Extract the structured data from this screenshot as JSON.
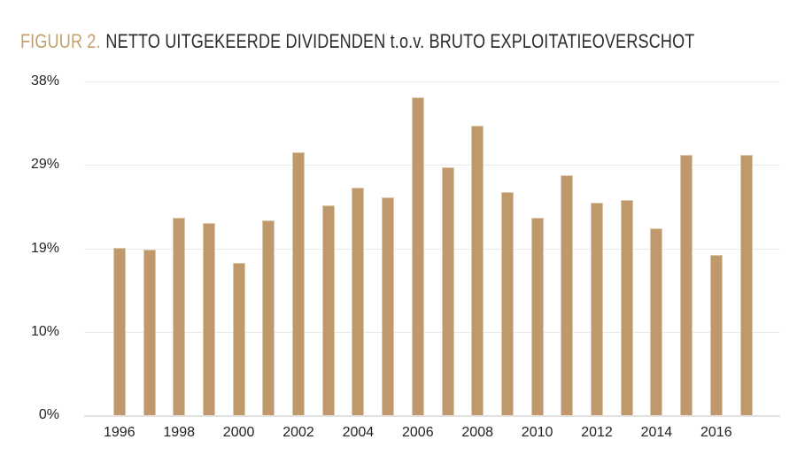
{
  "figure": {
    "label": "FIGUUR 2.",
    "title": "NETTO UITGEKEERDE DIVIDENDEN t.o.v. BRUTO EXPLOITATIEOVERSCHOT"
  },
  "colors": {
    "bar_fill": "#bf996b",
    "bar_edge": "#dcc9a9",
    "accent": "#c4a06e",
    "title_text": "#2b2b2b",
    "tick_text": "#232323",
    "gridline": "#e9e9e9",
    "baseline": "#e2e2e2",
    "background": "#ffffff"
  },
  "chart_data": {
    "type": "bar",
    "x": [
      1996,
      1997,
      1998,
      1999,
      2000,
      2001,
      2002,
      2003,
      2004,
      2005,
      2006,
      2007,
      2008,
      2009,
      2010,
      2011,
      2012,
      2013,
      2014,
      2015,
      2016,
      2017
    ],
    "values": [
      19.1,
      18.8,
      22.5,
      21.9,
      17.3,
      22.2,
      29.9,
      23.9,
      25.9,
      24.8,
      36.2,
      28.2,
      33.0,
      25.4,
      22.5,
      27.3,
      24.2,
      24.5,
      21.3,
      29.6,
      18.2,
      29.6
    ],
    "title": "FIGUUR 2. NETTO UITGEKEERDE DIVIDENDEN t.o.v. BRUTO EXPLOITATIEOVERSCHOT",
    "xlabel": "",
    "ylabel": "",
    "ylim": [
      0,
      38
    ],
    "grid": true,
    "legend": false,
    "y_ticks": [
      {
        "value": 0,
        "label": "0%"
      },
      {
        "value": 9.5,
        "label": "10%"
      },
      {
        "value": 19,
        "label": "19%"
      },
      {
        "value": 28.5,
        "label": "29%"
      },
      {
        "value": 38,
        "label": "38%"
      }
    ],
    "x_tick_labels": [
      "1996",
      "1998",
      "2000",
      "2002",
      "2004",
      "2006",
      "2008",
      "2010",
      "2012",
      "2014",
      "2016"
    ],
    "x_tick_every": 2
  }
}
